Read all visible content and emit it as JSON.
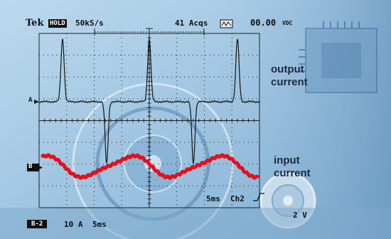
{
  "header": {
    "brand": "Tek",
    "mode": "HOLD",
    "sample_rate": "50kS/s",
    "acquisitions": "41 Acqs",
    "readout": "00.00",
    "readout_unit": "VDC"
  },
  "channels": {
    "a_marker": "A",
    "b_marker": "B",
    "b2_label": "B-2",
    "b2_scale": "10 A",
    "b2_time": "5ms",
    "time_base": "5ms",
    "trigger": "Ch2",
    "ch2_scale": "2 V"
  },
  "annotations": {
    "output_line1": "output",
    "output_line2": "current",
    "input_line1": "input",
    "input_line2": "current"
  },
  "colors": {
    "trace_output": "#141414",
    "trace_input": "#e4101c",
    "grid": "#222222",
    "background": "#9dc3df"
  },
  "icons": {
    "readout_icon": "waveform-box-icon"
  }
}
